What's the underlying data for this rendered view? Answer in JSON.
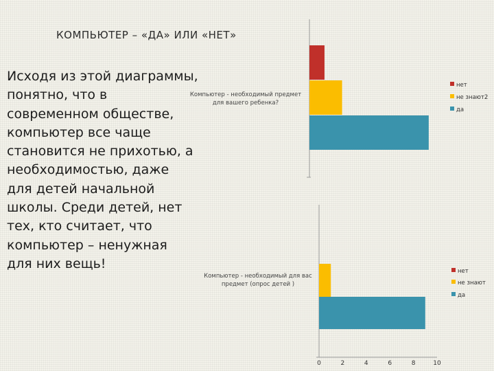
{
  "slide": {
    "title": "КОМПЬЮТЕР – «ДА» ИЛИ «НЕТ»",
    "body": "Исходя из этой диаграммы,\nпонятно, что в\nсовременном обществе,\nкомпьютер все чаще\nстановится не прихотью, а\nнеобходимостью, даже\nдля детей начальной\nшколы. Среди детей, нет\nтех, кто считает, что\nкомпьютер – ненужная\nдля них вещь!"
  },
  "chart_data": [
    {
      "type": "bar",
      "orientation": "horizontal",
      "categories": [
        "Компьютер - необходимый предмет для вашего ребенка?"
      ],
      "category_label_lines": [
        "Компьютер - необходимый предмет",
        "для вашего ребенка?"
      ],
      "series": [
        {
          "name": "нет",
          "values": [
            1.2
          ],
          "color": "#c0302a"
        },
        {
          "name": "не знают2",
          "values": [
            2.6
          ],
          "color": "#fbbd00"
        },
        {
          "name": "да",
          "values": [
            9.5
          ],
          "color": "#3a93ac"
        }
      ],
      "xlim": [
        0,
        10
      ],
      "legend_position": "right",
      "grid": false
    },
    {
      "type": "bar",
      "orientation": "horizontal",
      "categories": [
        "Компьютер - необходимый для вас предмет (опрос детей )"
      ],
      "category_label_lines": [
        "Компьютер - необходимый для вас",
        "предмет (опрос детей )"
      ],
      "series": [
        {
          "name": "нет",
          "values": [
            0
          ],
          "color": "#c0302a"
        },
        {
          "name": "не знают",
          "values": [
            1
          ],
          "color": "#fbbd00"
        },
        {
          "name": "да",
          "values": [
            9
          ],
          "color": "#3a93ac"
        }
      ],
      "x_ticks": [
        0,
        2,
        4,
        6,
        8,
        10
      ],
      "xlim": [
        0,
        10
      ],
      "legend_position": "right",
      "grid": false
    }
  ]
}
